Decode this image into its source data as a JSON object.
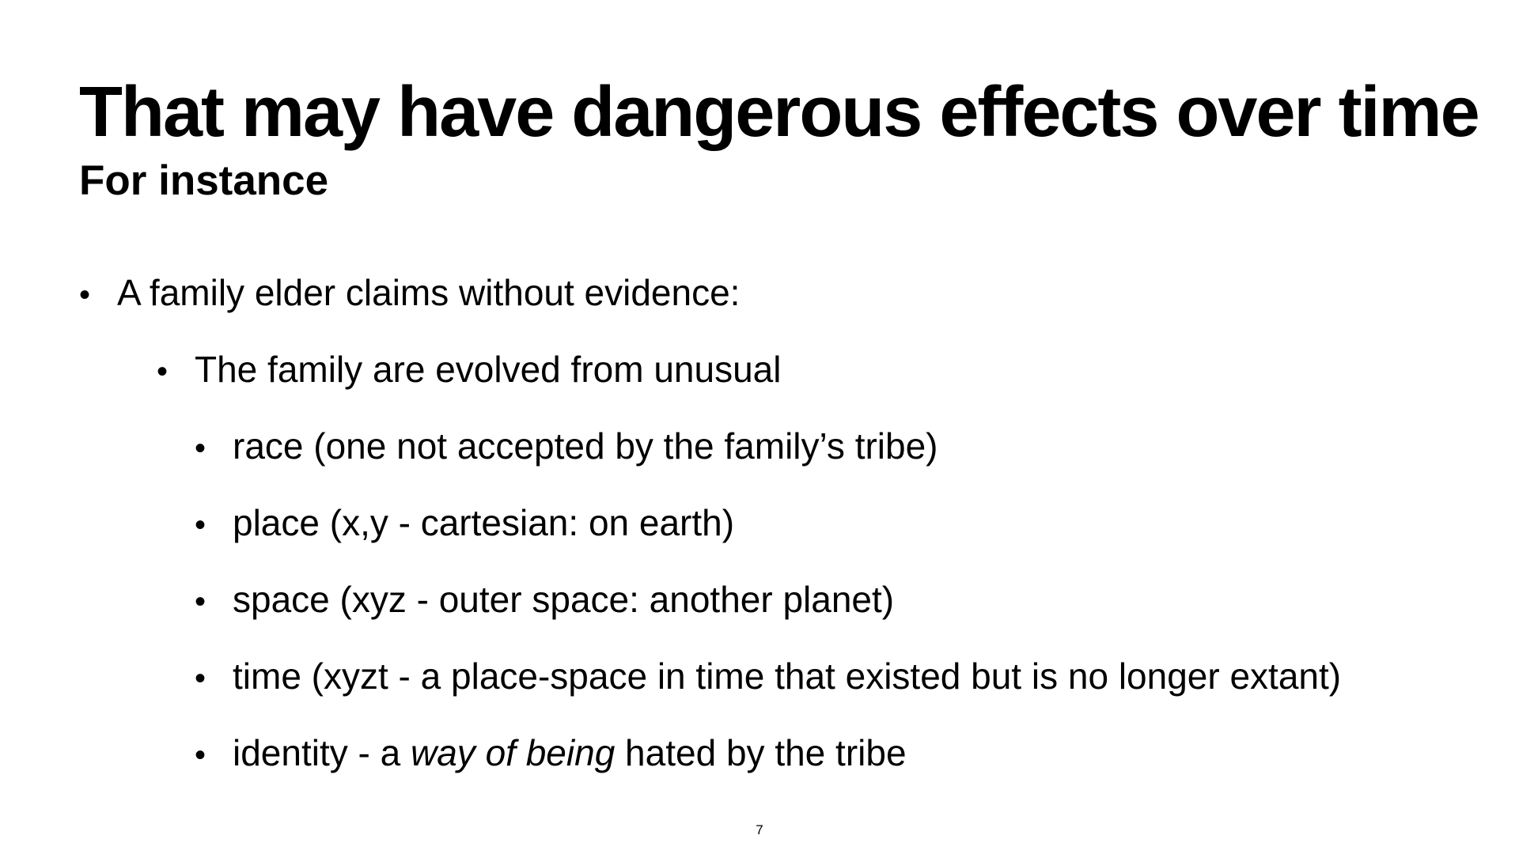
{
  "slide": {
    "title": "That may have dangerous effects over time",
    "subtitle": "For instance",
    "bullets": {
      "elder": "A family elder claims without evidence:",
      "evolved": "The family are evolved from unusual",
      "race": "race (one not accepted by the family’s tribe)",
      "place": "place (x,y - cartesian: on earth)",
      "space": "space (xyz - outer space: another planet)",
      "time": "time (xyzt - a place-space in time that existed but is no longer extant)",
      "identity": {
        "prefix": "identity - a ",
        "emphasis": "way of being",
        "suffix": " hated by the tribe"
      }
    },
    "bullet_symbol": "•",
    "page_number": "7"
  }
}
